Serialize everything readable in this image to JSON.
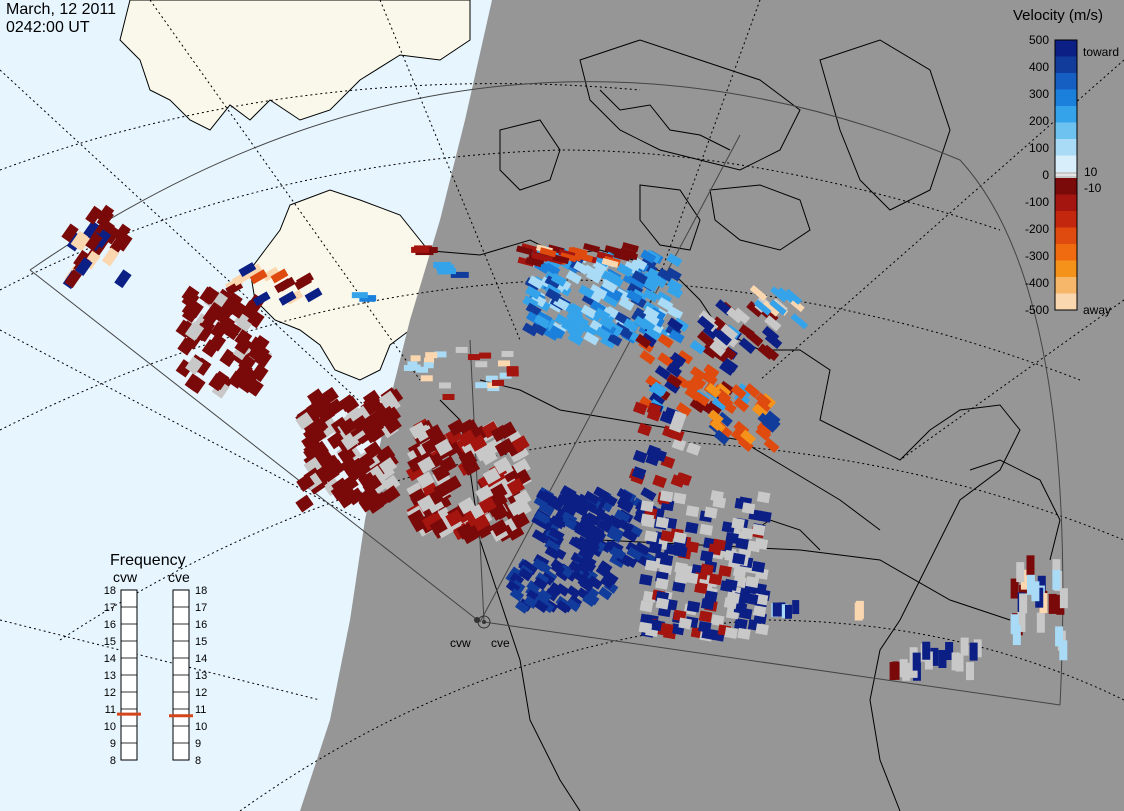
{
  "header": {
    "date": "March, 12 2011",
    "time": "0242:00 UT"
  },
  "legend": {
    "title": "Velocity (m/s)",
    "ticks": [
      "500",
      "400",
      "300",
      "200",
      "100",
      "0",
      "-100",
      "-200",
      "-300",
      "-400",
      "-500"
    ],
    "inner_labels": [
      "10",
      "-10"
    ],
    "toward_label": "toward",
    "away_label": "away",
    "colors": {
      "toward": [
        "#d9eefb",
        "#a9dbf6",
        "#6ec2f0",
        "#35a3ea",
        "#1b80dc",
        "#155ec2",
        "#123c9c",
        "#0b1f85"
      ],
      "away": [
        "#7a0a0a",
        "#a3150e",
        "#c3280f",
        "#df4a0e",
        "#f06a10",
        "#f4921a",
        "#f7b76a",
        "#fbd7b0"
      ],
      "ground_scatter": "#c8c8c8"
    }
  },
  "frequency": {
    "title": "Frequency",
    "radars": [
      "cvw",
      "cve"
    ],
    "unit_ticks": [
      "18",
      "17",
      "16",
      "15",
      "14",
      "13",
      "12",
      "11",
      "10",
      "9",
      "8"
    ],
    "current_mhz": {
      "cvw": 10.7,
      "cve": 10.6
    }
  },
  "map": {
    "site_labels": [
      "cvw",
      "cve"
    ],
    "colors": {
      "ocean": "#e6f5fe",
      "land": "#faf8ea",
      "night": "#969696",
      "coast": "#000000",
      "grid": "#000000"
    }
  }
}
